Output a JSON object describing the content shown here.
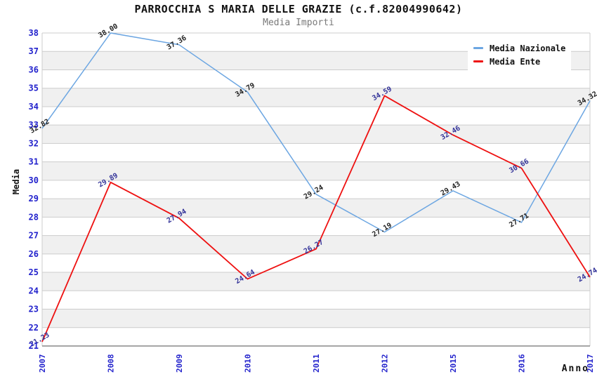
{
  "chart_data": {
    "type": "line",
    "title": "PARROCCHIA S MARIA DELLE GRAZIE (c.f.82004990642)",
    "subtitle": "Media Importi",
    "xlabel": "Anno",
    "ylabel": "Media",
    "categories": [
      "2007",
      "2008",
      "2009",
      "2010",
      "2011",
      "2012",
      "2015",
      "2016",
      "2017"
    ],
    "series": [
      {
        "name": "Media Nazionale",
        "color": "#6CA6E2",
        "label_color": "#222222",
        "values": [
          32.82,
          38.0,
          37.36,
          34.79,
          29.24,
          27.19,
          29.43,
          27.71,
          34.32
        ]
      },
      {
        "name": "Media Ente",
        "color": "#EE1111",
        "label_color": "#333399",
        "values": [
          21.23,
          29.89,
          27.94,
          24.64,
          26.27,
          34.59,
          32.46,
          30.66,
          24.74
        ]
      }
    ],
    "ylim": [
      21,
      38
    ],
    "yticks": [
      21,
      22,
      23,
      24,
      25,
      26,
      27,
      28,
      29,
      30,
      31,
      32,
      33,
      34,
      35,
      36,
      37,
      38
    ],
    "point_label_decimals": 2,
    "grid": true,
    "banded_background": true,
    "legend_position": "top-right",
    "colors": {
      "tick_label": "#2222CC",
      "band": "#F0F0F0",
      "gridline": "#CCCCCC",
      "axis_line": "#888888",
      "subtitle_text": "#7A7A7A"
    }
  }
}
